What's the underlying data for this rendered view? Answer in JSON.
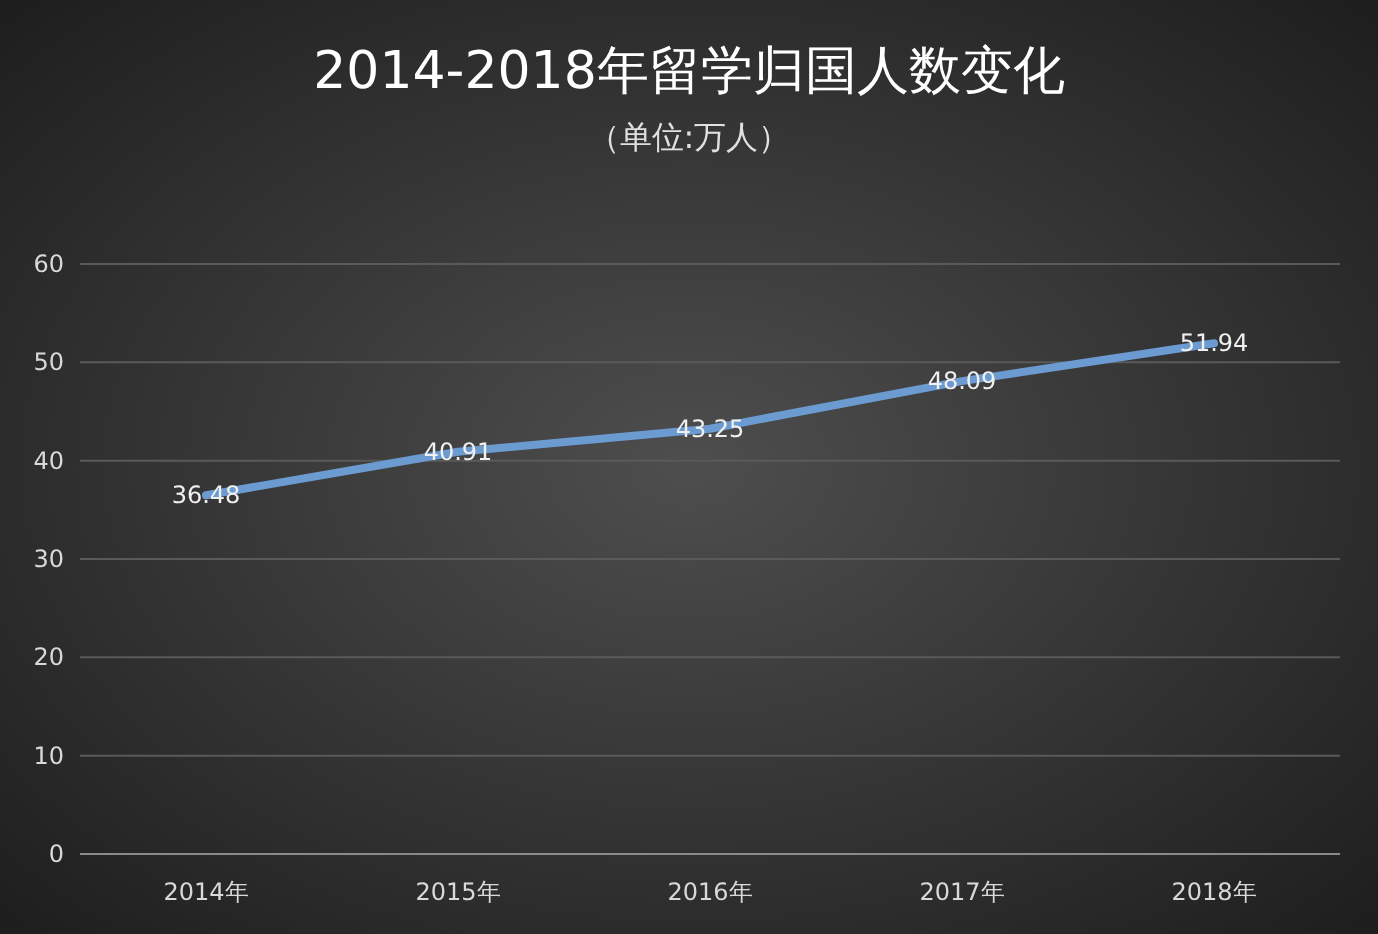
{
  "chart_data": {
    "type": "line",
    "title": "2014-2018年留学归国人数变化",
    "subtitle": "（单位:万人）",
    "categories": [
      "2014年",
      "2015年",
      "2016年",
      "2017年",
      "2018年"
    ],
    "series": [
      {
        "color": "#6b9bd0",
        "values": [
          36.48,
          40.91,
          43.25,
          48.09,
          51.94
        ]
      }
    ],
    "ylim": [
      0,
      60
    ],
    "yticks": [
      0,
      10,
      20,
      30,
      40,
      50,
      60
    ],
    "grid": "y",
    "data_labels": true,
    "line_style": "solid"
  }
}
